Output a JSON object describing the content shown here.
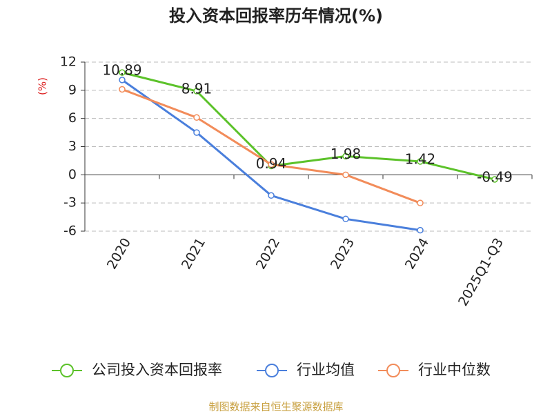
{
  "chart_data": {
    "type": "line",
    "title": "投入资本回报率历年情况(%)",
    "y_label": "(%)",
    "categories": [
      "2020",
      "2021",
      "2022",
      "2023",
      "2024",
      "2025Q1-Q3"
    ],
    "series": [
      {
        "name": "公司投入资本回报率",
        "color": "#5cc22a",
        "values": [
          10.89,
          8.91,
          0.94,
          1.98,
          1.42,
          -0.49
        ],
        "data_labels": true
      },
      {
        "name": "行业均值",
        "color": "#4a7fdc",
        "values": [
          10.1,
          4.5,
          -2.2,
          -4.7,
          -5.9,
          null
        ]
      },
      {
        "name": "行业中位数",
        "color": "#f28c5a",
        "values": [
          9.1,
          6.1,
          1.1,
          0.0,
          -3.0,
          null
        ]
      }
    ],
    "ylim": [
      -6,
      12
    ],
    "yticks": [
      -6,
      -3,
      0,
      3,
      6,
      9,
      12
    ],
    "grid": true,
    "source": "制图数据来自恒生聚源数据库"
  }
}
